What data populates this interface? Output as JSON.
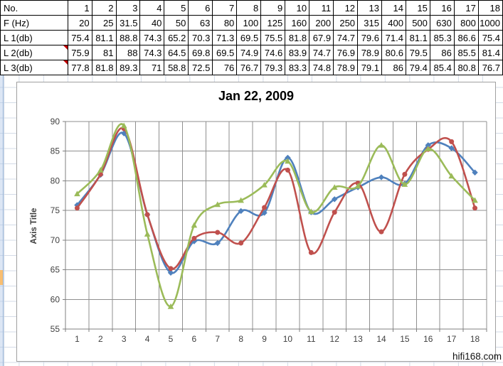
{
  "table": {
    "rows": [
      {
        "label": "No.",
        "comment": false,
        "values": [
          "1",
          "2",
          "3",
          "4",
          "5",
          "6",
          "7",
          "8",
          "9",
          "10",
          "11",
          "12",
          "13",
          "14",
          "15",
          "16",
          "17",
          "18"
        ]
      },
      {
        "label": "F (Hz)",
        "comment": false,
        "values": [
          "20",
          "25",
          "31.5",
          "40",
          "50",
          "63",
          "80",
          "100",
          "125",
          "160",
          "200",
          "250",
          "315",
          "400",
          "500",
          "630",
          "800",
          "1000"
        ]
      },
      {
        "label": "L 1(db)",
        "comment": false,
        "values": [
          "75.4",
          "81.1",
          "88.8",
          "74.3",
          "65.2",
          "70.3",
          "71.3",
          "69.5",
          "75.5",
          "81.8",
          "67.9",
          "74.7",
          "79.6",
          "71.4",
          "81.1",
          "85.3",
          "86.6",
          "75.4"
        ]
      },
      {
        "label": "L 2(db)",
        "comment": true,
        "values": [
          "75.9",
          "81",
          "88",
          "74.3",
          "64.5",
          "69.8",
          "69.5",
          "74.9",
          "74.6",
          "83.9",
          "74.7",
          "76.9",
          "78.9",
          "80.6",
          "79.5",
          "86",
          "85.5",
          "81.4"
        ]
      },
      {
        "label": "L 3(db)",
        "comment": true,
        "values": [
          "77.8",
          "81.8",
          "89.3",
          "71",
          "58.8",
          "72.5",
          "76",
          "76.7",
          "79.3",
          "83.3",
          "74.8",
          "78.9",
          "79.1",
          "86",
          "79.4",
          "85.4",
          "80.8",
          "76.7"
        ]
      }
    ]
  },
  "chart_data": {
    "type": "line",
    "title": "Jan 22, 2009",
    "xlabel": "",
    "ylabel": "Axis Title",
    "ylim": [
      55,
      90
    ],
    "ytick_step": 5,
    "grid": true,
    "legend": "none",
    "smoothed": true,
    "categories": [
      "1",
      "2",
      "3",
      "4",
      "5",
      "6",
      "7",
      "8",
      "9",
      "10",
      "11",
      "12",
      "13",
      "14",
      "15",
      "16",
      "17",
      "18"
    ],
    "series": [
      {
        "name": "L 2(db)",
        "color": "#4F81BD",
        "marker": "diamond",
        "values": [
          75.9,
          81,
          88,
          74.3,
          64.5,
          69.8,
          69.5,
          74.9,
          74.6,
          83.9,
          74.7,
          76.9,
          78.9,
          80.6,
          79.5,
          86,
          85.5,
          81.4
        ]
      },
      {
        "name": "L 1(db)",
        "color": "#C0504D",
        "marker": "circle",
        "values": [
          75.4,
          81.1,
          88.8,
          74.3,
          65.2,
          70.3,
          71.3,
          69.5,
          75.5,
          81.8,
          67.9,
          74.7,
          79.6,
          71.4,
          81.1,
          85.3,
          86.6,
          75.4
        ]
      },
      {
        "name": "L 3(db)",
        "color": "#9BBB59",
        "marker": "triangle",
        "values": [
          77.8,
          81.8,
          89.3,
          71,
          58.8,
          72.5,
          76,
          76.7,
          79.3,
          83.3,
          74.8,
          78.9,
          79.1,
          86,
          79.4,
          85.4,
          80.8,
          76.7
        ]
      }
    ]
  },
  "watermark": "hifi168.com",
  "colors": {
    "grid_line": "#8f8f8f",
    "axis_line": "#7f7f7f",
    "tick_label": "#404040",
    "sheet_grid": "#d3dbe7",
    "highlight_cell": "#F9BE70",
    "comment_flag": "#C00000"
  }
}
